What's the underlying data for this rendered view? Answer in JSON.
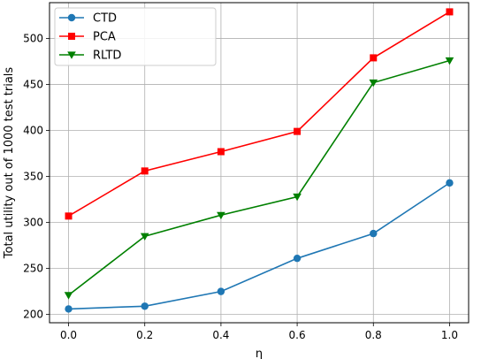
{
  "chart_data": {
    "type": "line",
    "xlabel": "η",
    "ylabel": "Total utility out of 1000 test trials",
    "x": [
      0.0,
      0.2,
      0.4,
      0.6,
      0.8,
      1.0
    ],
    "xlim": [
      -0.05,
      1.05
    ],
    "ylim": [
      191,
      539
    ],
    "xticks": [
      0.0,
      0.2,
      0.4,
      0.6,
      0.8,
      1.0
    ],
    "xtick_labels": [
      "0.0",
      "0.2",
      "0.4",
      "0.6",
      "0.8",
      "1.0"
    ],
    "yticks": [
      200,
      250,
      300,
      350,
      400,
      450,
      500
    ],
    "ytick_labels": [
      "200",
      "250",
      "300",
      "350",
      "400",
      "450",
      "500"
    ],
    "grid": true,
    "legend_position": "top-left",
    "series": [
      {
        "name": "CTD",
        "color": "#1f77b4",
        "marker": "circle",
        "values": [
          206,
          209,
          225,
          261,
          288,
          343
        ]
      },
      {
        "name": "PCA",
        "color": "#ff0000",
        "marker": "square",
        "values": [
          307,
          356,
          377,
          399,
          479,
          529
        ]
      },
      {
        "name": "RLTD",
        "color": "#008000",
        "marker": "triangle-down",
        "values": [
          221,
          285,
          308,
          328,
          452,
          476
        ]
      }
    ]
  }
}
